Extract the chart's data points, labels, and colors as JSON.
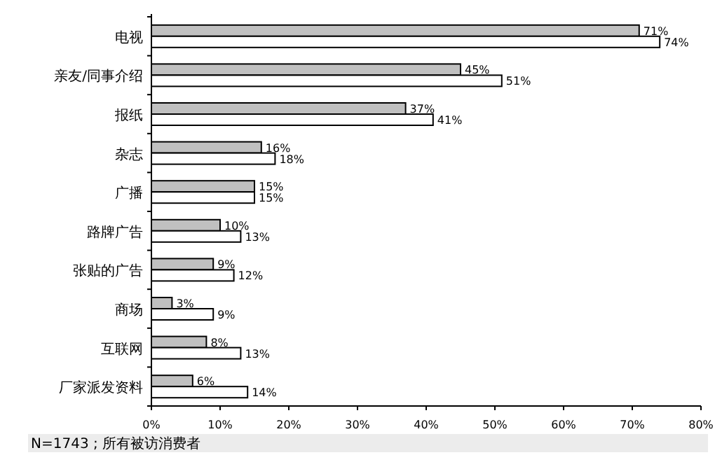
{
  "chart_data": {
    "type": "bar",
    "orientation": "horizontal",
    "categories": [
      "电视",
      "亲友/同事介绍",
      "报纸",
      "杂志",
      "广播",
      "路牌广告",
      "张贴的广告",
      "商场",
      "互联网",
      "厂家派发资料"
    ],
    "series": [
      {
        "color": "#c0c0c0",
        "values": [
          71,
          45,
          37,
          16,
          15,
          10,
          9,
          3,
          8,
          6
        ],
        "value_labels": [
          "71%",
          "45%",
          "37%",
          "16%",
          "15%",
          "10%",
          "9%",
          "3%",
          "8%",
          "6%"
        ]
      },
      {
        "color": "#ffffff",
        "values": [
          74,
          51,
          41,
          18,
          15,
          13,
          12,
          9,
          13,
          14
        ],
        "value_labels": [
          "74%",
          "51%",
          "41%",
          "18%",
          "15%",
          "13%",
          "12%",
          "9%",
          "13%",
          "14%"
        ]
      }
    ],
    "xlim": [
      0,
      80
    ],
    "xticks": [
      {
        "value": 0,
        "label": "0%"
      },
      {
        "value": 10,
        "label": "10%"
      },
      {
        "value": 20,
        "label": "20%"
      },
      {
        "value": 30,
        "label": "30%"
      },
      {
        "value": 40,
        "label": "40%"
      },
      {
        "value": 50,
        "label": "50%"
      },
      {
        "value": 60,
        "label": "60%"
      },
      {
        "value": 70,
        "label": "70%"
      },
      {
        "value": 80,
        "label": "80%"
      }
    ],
    "grid": false,
    "annotations": [
      "N=1743 ; 所有被访消费者"
    ]
  }
}
